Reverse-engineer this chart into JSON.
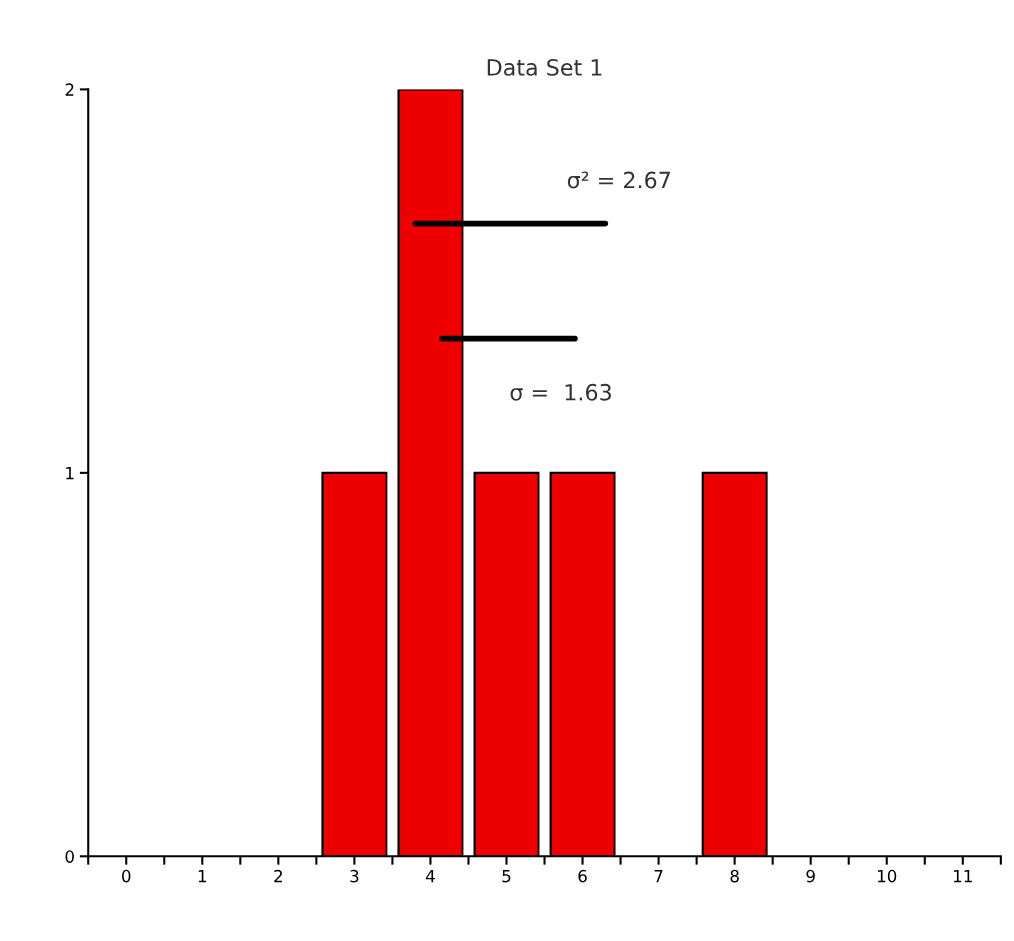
{
  "chart_data": {
    "type": "bar",
    "title": "Data Set 1",
    "x": [
      3,
      4,
      5,
      6,
      8
    ],
    "series": [
      {
        "color": "#ee0000",
        "values": [
          1,
          2,
          1,
          1,
          1
        ]
      },
      {
        "type": "line",
        "color": "#000000",
        "x": [
          3.8,
          6.3
        ],
        "values": [
          1.65,
          1.65
        ]
      },
      {
        "type": "line",
        "color": "#000000",
        "x": [
          4.15,
          5.9
        ],
        "values": [
          1.35,
          1.35
        ]
      }
    ],
    "annotations": [
      "σ² = 2.67",
      "σ =  1.63"
    ],
    "xlim": [
      -0.5,
      11.5
    ],
    "xticks": [
      {
        "value": -0.5,
        "label": null
      },
      0,
      {
        "value": 0.5,
        "label": null
      },
      1,
      {
        "value": 1.5,
        "label": null
      },
      2,
      {
        "value": 2.5,
        "label": null
      },
      3,
      {
        "value": 3.5,
        "label": null
      },
      4,
      {
        "value": 4.5,
        "label": null
      },
      5,
      {
        "value": 5.5,
        "label": null
      },
      6,
      {
        "value": 6.5,
        "label": null
      },
      7,
      {
        "value": 7.5,
        "label": null
      },
      8,
      {
        "value": 8.5,
        "label": null
      },
      9,
      {
        "value": 9.5,
        "label": null
      },
      10,
      {
        "value": 10.5,
        "label": null
      },
      11,
      {
        "value": 11.5,
        "label": null
      }
    ],
    "ylim": [
      0,
      2
    ],
    "yticks": [
      0,
      1,
      2
    ],
    "grid": false,
    "legend": false
  }
}
